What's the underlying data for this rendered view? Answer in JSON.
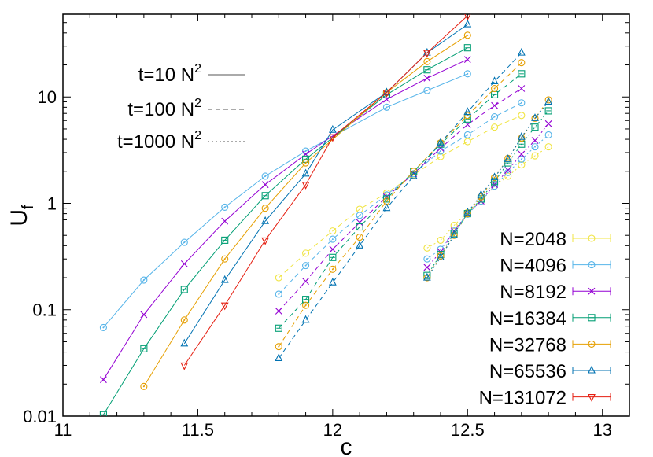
{
  "chart_data": {
    "type": "line",
    "xlabel": "c",
    "ylabel": "U",
    "ylabel_sub": "f",
    "xlim": [
      11,
      13.1
    ],
    "ylim": [
      0.01,
      60
    ],
    "yscale": "log",
    "grid": false,
    "x_ticks": [
      {
        "value": 11,
        "label": "11"
      },
      {
        "value": 11.5,
        "label": "11.5"
      },
      {
        "value": 12,
        "label": "12"
      },
      {
        "value": 12.5,
        "label": "12.5"
      },
      {
        "value": 13,
        "label": "13"
      }
    ],
    "y_ticks": [
      {
        "value": 0.01,
        "label": "0.01"
      },
      {
        "value": 0.1,
        "label": "0.1"
      },
      {
        "value": 1,
        "label": "1"
      },
      {
        "value": 10,
        "label": "10"
      }
    ],
    "time_legend": [
      {
        "label": "t=10 N",
        "sup": "2",
        "dash": "solid"
      },
      {
        "label": "t=100 N",
        "sup": "2",
        "dash": "dashed"
      },
      {
        "label": "t=1000 N",
        "sup": "2",
        "dash": "dotted"
      }
    ],
    "legend_position": "bottom-right",
    "series": [
      {
        "name": "N=2048",
        "color": "#f0e442",
        "marker": "circle",
        "runs": [
          {
            "dash": "dashed",
            "x": [
              11.8,
              11.9,
              12.0,
              12.1,
              12.2,
              12.3,
              12.4,
              12.5,
              12.6,
              12.7
            ],
            "y": [
              0.2,
              0.34,
              0.55,
              0.88,
              1.25,
              1.85,
              2.75,
              3.8,
              5.2,
              6.7
            ]
          },
          {
            "dash": "dotted",
            "x": [
              12.35,
              12.4,
              12.45,
              12.5,
              12.55,
              12.6,
              12.65,
              12.7,
              12.75,
              12.8
            ],
            "y": [
              0.38,
              0.45,
              0.62,
              0.82,
              1.05,
              1.45,
              1.8,
              2.3,
              2.8,
              3.4
            ]
          }
        ]
      },
      {
        "name": "N=4096",
        "color": "#56b4e9",
        "marker": "circle-dot",
        "runs": [
          {
            "dash": "solid",
            "x": [
              11.15,
              11.3,
              11.45,
              11.6,
              11.75,
              11.9,
              12.2,
              12.35,
              12.5
            ],
            "y": [
              0.068,
              0.19,
              0.43,
              0.92,
              1.8,
              3.1,
              8.0,
              11.5,
              16.5
            ]
          },
          {
            "dash": "dashed",
            "x": [
              11.8,
              11.9,
              12.0,
              12.1,
              12.2,
              12.3,
              12.4,
              12.5,
              12.6,
              12.7
            ],
            "y": [
              0.14,
              0.26,
              0.46,
              0.77,
              1.2,
              1.9,
              3.1,
              4.4,
              6.5,
              8.8
            ]
          },
          {
            "dash": "dotted",
            "x": [
              12.35,
              12.4,
              12.45,
              12.5,
              12.55,
              12.6,
              12.65,
              12.7,
              12.75,
              12.8
            ],
            "y": [
              0.3,
              0.37,
              0.55,
              0.79,
              1.05,
              1.45,
              1.95,
              2.6,
              3.4,
              4.4
            ]
          }
        ]
      },
      {
        "name": "N=8192",
        "color": "#9400d3",
        "marker": "cross",
        "runs": [
          {
            "dash": "solid",
            "x": [
              11.15,
              11.3,
              11.45,
              11.6,
              11.75,
              11.9,
              12.2,
              12.35,
              12.5
            ],
            "y": [
              0.022,
              0.09,
              0.27,
              0.68,
              1.5,
              2.9,
              9.5,
              15.0,
              22.5
            ]
          },
          {
            "dash": "dashed",
            "x": [
              11.8,
              11.9,
              12.0,
              12.1,
              12.2,
              12.3,
              12.4,
              12.5,
              12.6,
              12.7
            ],
            "y": [
              0.097,
              0.185,
              0.37,
              0.66,
              1.15,
              1.9,
              3.3,
              5.5,
              8.3,
              12.0
            ]
          },
          {
            "dash": "dotted",
            "x": [
              12.35,
              12.4,
              12.45,
              12.5,
              12.55,
              12.6,
              12.65,
              12.7,
              12.75,
              12.8
            ],
            "y": [
              0.25,
              0.35,
              0.55,
              0.8,
              1.05,
              1.5,
              2.05,
              2.9,
              3.9,
              5.6
            ]
          }
        ]
      },
      {
        "name": "N=16384",
        "color": "#009e73",
        "marker": "square",
        "runs": [
          {
            "dash": "solid",
            "x": [
              11.15,
              11.3,
              11.45,
              11.6,
              11.75,
              11.9,
              12.2,
              12.35,
              12.5
            ],
            "y": [
              0.0103,
              0.043,
              0.155,
              0.45,
              1.18,
              2.6,
              10.5,
              18.0,
              29.0
            ]
          },
          {
            "dash": "dashed",
            "x": [
              11.8,
              11.9,
              12.0,
              12.1,
              12.2,
              12.3,
              12.4,
              12.5,
              12.6,
              12.7
            ],
            "y": [
              0.067,
              0.125,
              0.31,
              0.6,
              1.1,
              2.0,
              3.6,
              6.2,
              10.5,
              16.5
            ]
          },
          {
            "dash": "dotted",
            "x": [
              12.35,
              12.4,
              12.45,
              12.5,
              12.55,
              12.6,
              12.65,
              12.7,
              12.75,
              12.8
            ],
            "y": [
              0.21,
              0.33,
              0.52,
              0.8,
              1.1,
              1.6,
              2.4,
              3.6,
              5.2,
              7.4
            ]
          }
        ]
      },
      {
        "name": "N=32768",
        "color": "#e69f00",
        "marker": "circle-dot",
        "runs": [
          {
            "dash": "solid",
            "x": [
              11.3,
              11.45,
              11.6,
              11.75,
              11.9,
              12.2,
              12.35,
              12.5
            ],
            "y": [
              0.019,
              0.08,
              0.3,
              0.9,
              2.4,
              11.0,
              21.5,
              38.0
            ]
          },
          {
            "dash": "dashed",
            "x": [
              11.8,
              11.9,
              12.0,
              12.1,
              12.2,
              12.3,
              12.4,
              12.5,
              12.6,
              12.7
            ],
            "y": [
              0.045,
              0.11,
              0.24,
              0.48,
              1.05,
              2.0,
              3.7,
              6.7,
              12.0,
              21.0
            ]
          },
          {
            "dash": "dotted",
            "x": [
              12.35,
              12.4,
              12.45,
              12.5,
              12.55,
              12.6,
              12.65,
              12.7,
              12.75,
              12.8
            ],
            "y": [
              0.2,
              0.32,
              0.5,
              0.8,
              1.15,
              1.75,
              2.65,
              4.1,
              6.3,
              9.4
            ]
          }
        ]
      },
      {
        "name": "N=65536",
        "color": "#0072b2",
        "marker": "triangle",
        "runs": [
          {
            "dash": "solid",
            "x": [
              11.45,
              11.6,
              11.75,
              11.9,
              12.0,
              12.2,
              12.35,
              12.5
            ],
            "y": [
              0.048,
              0.19,
              0.68,
              1.9,
              4.9,
              11.0,
              26.0,
              48.0
            ]
          },
          {
            "dash": "dashed",
            "x": [
              11.8,
              11.9,
              12.0,
              12.1,
              12.2,
              12.3,
              12.4,
              12.5,
              12.6,
              12.7
            ],
            "y": [
              0.035,
              0.08,
              0.18,
              0.4,
              0.9,
              1.8,
              3.7,
              7.2,
              14.0,
              26.0
            ]
          },
          {
            "dash": "dotted",
            "x": [
              12.35,
              12.4,
              12.45,
              12.5,
              12.55,
              12.6,
              12.65,
              12.7,
              12.75,
              12.8
            ],
            "y": [
              0.2,
              0.31,
              0.5,
              0.82,
              1.2,
              1.75,
              2.6,
              4.2,
              6.3,
              9.0
            ]
          }
        ]
      },
      {
        "name": "N=131072",
        "color": "#e51e10",
        "marker": "triangle-down",
        "runs": [
          {
            "dash": "solid",
            "x": [
              11.45,
              11.6,
              11.75,
              11.9,
              12.0,
              12.2,
              12.35,
              12.5
            ],
            "y": [
              0.03,
              0.11,
              0.45,
              1.5,
              4.2,
              11.0,
              26.0,
              58.0
            ]
          }
        ]
      }
    ]
  }
}
